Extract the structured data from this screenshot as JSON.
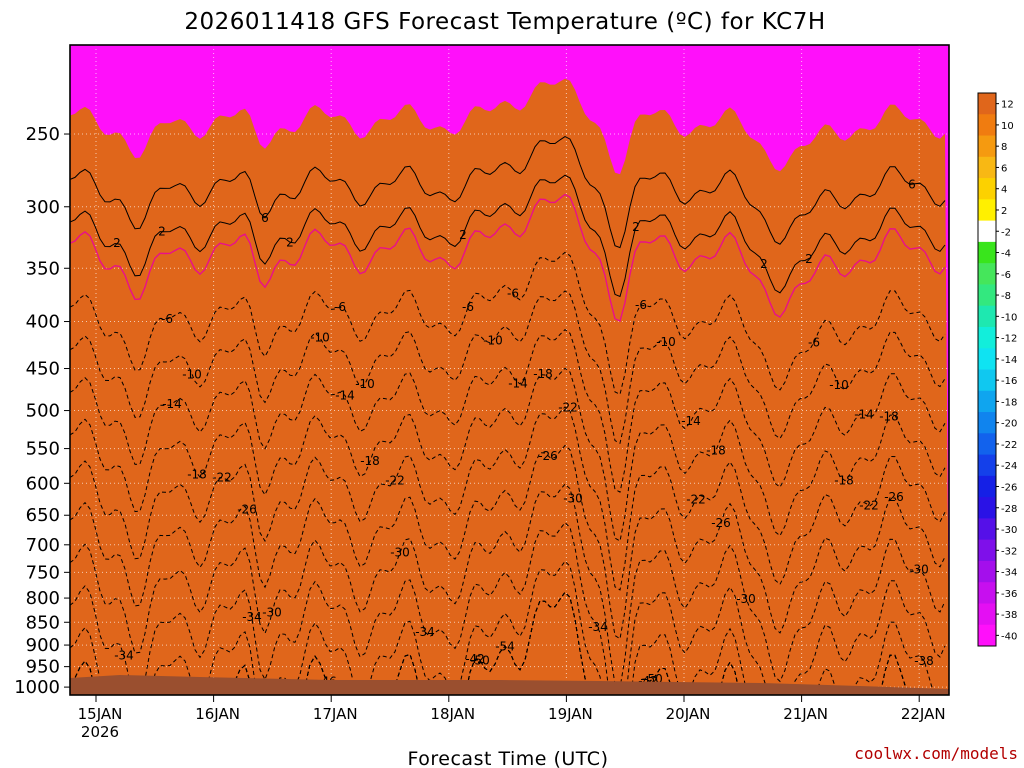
{
  "chart_data": {
    "type": "heatmap",
    "title": "2026011418 GFS Forecast Temperature (ºC) for KC7H",
    "xlabel": "Forecast Time (UTC)",
    "credit": "coolwx.com/models",
    "x_ticks": [
      "15JAN",
      "16JAN",
      "17JAN",
      "18JAN",
      "19JAN",
      "20JAN",
      "21JAN",
      "22JAN"
    ],
    "x_year": "2026",
    "y_ticks": [
      "250",
      "300",
      "350",
      "400",
      "450",
      "500",
      "550",
      "600",
      "650",
      "700",
      "750",
      "800",
      "850",
      "900",
      "950",
      "1000"
    ],
    "y_axis": "pressure (hPa), log-scale, inverted",
    "y_range": [
      200,
      1020
    ],
    "grid": true,
    "legend": "colorbar at right",
    "colorbar_ticks": [
      "12",
      "10",
      "8",
      "6",
      "4",
      "2",
      "-2",
      "-4",
      "-6",
      "-8",
      "-10",
      "-12",
      "-14",
      "-16",
      "-18",
      "-20",
      "-22",
      "-24",
      "-26",
      "-28",
      "-30",
      "-32",
      "-34",
      "-36",
      "-38",
      "-40"
    ],
    "colorbar_colors": [
      "#e0661b",
      "#f07c10",
      "#f59a10",
      "#f8b814",
      "#fcd100",
      "#fff000",
      "#ffffff",
      "#39e51c",
      "#45e65b",
      "#33e87f",
      "#1ee8b0",
      "#12eedb",
      "#0fe3f2",
      "#10c8f0",
      "#0fa5ef",
      "#1084ee",
      "#1262ed",
      "#1440ea",
      "#1520e6",
      "#2a12e6",
      "#5510e8",
      "#7f10ea",
      "#a40fec",
      "#c70fef",
      "#e40ff3",
      "#ff10fa"
    ],
    "contour_labels": [
      "-54",
      "-54",
      "-54",
      "-54",
      "-50",
      "-50",
      "-50",
      "-50",
      "-46",
      "-46",
      "-46",
      "-46",
      "-42",
      "-42",
      "-42",
      "-42",
      "-42",
      "-38",
      "-38",
      "-38",
      "-38",
      "-38",
      "-34",
      "-34",
      "-34",
      "-34",
      "-34",
      "-30",
      "-30",
      "-30",
      "-30",
      "-30",
      "-26",
      "-26",
      "-26",
      "-26",
      "-22",
      "-22",
      "-22",
      "-22",
      "-22",
      "-18",
      "-18",
      "-18",
      "-18",
      "-18",
      "-18",
      "-14",
      "-14",
      "-14",
      "-14",
      "-14",
      "-10",
      "-10",
      "-10",
      "-10",
      "-10",
      "-10",
      "-6",
      "-6",
      "-6",
      "-6",
      "-6",
      "-6",
      "2",
      "2",
      "2",
      "2",
      "2",
      "2",
      "2",
      "6",
      "6"
    ],
    "freezing_level_line": "magenta 0 °C isotherm"
  }
}
